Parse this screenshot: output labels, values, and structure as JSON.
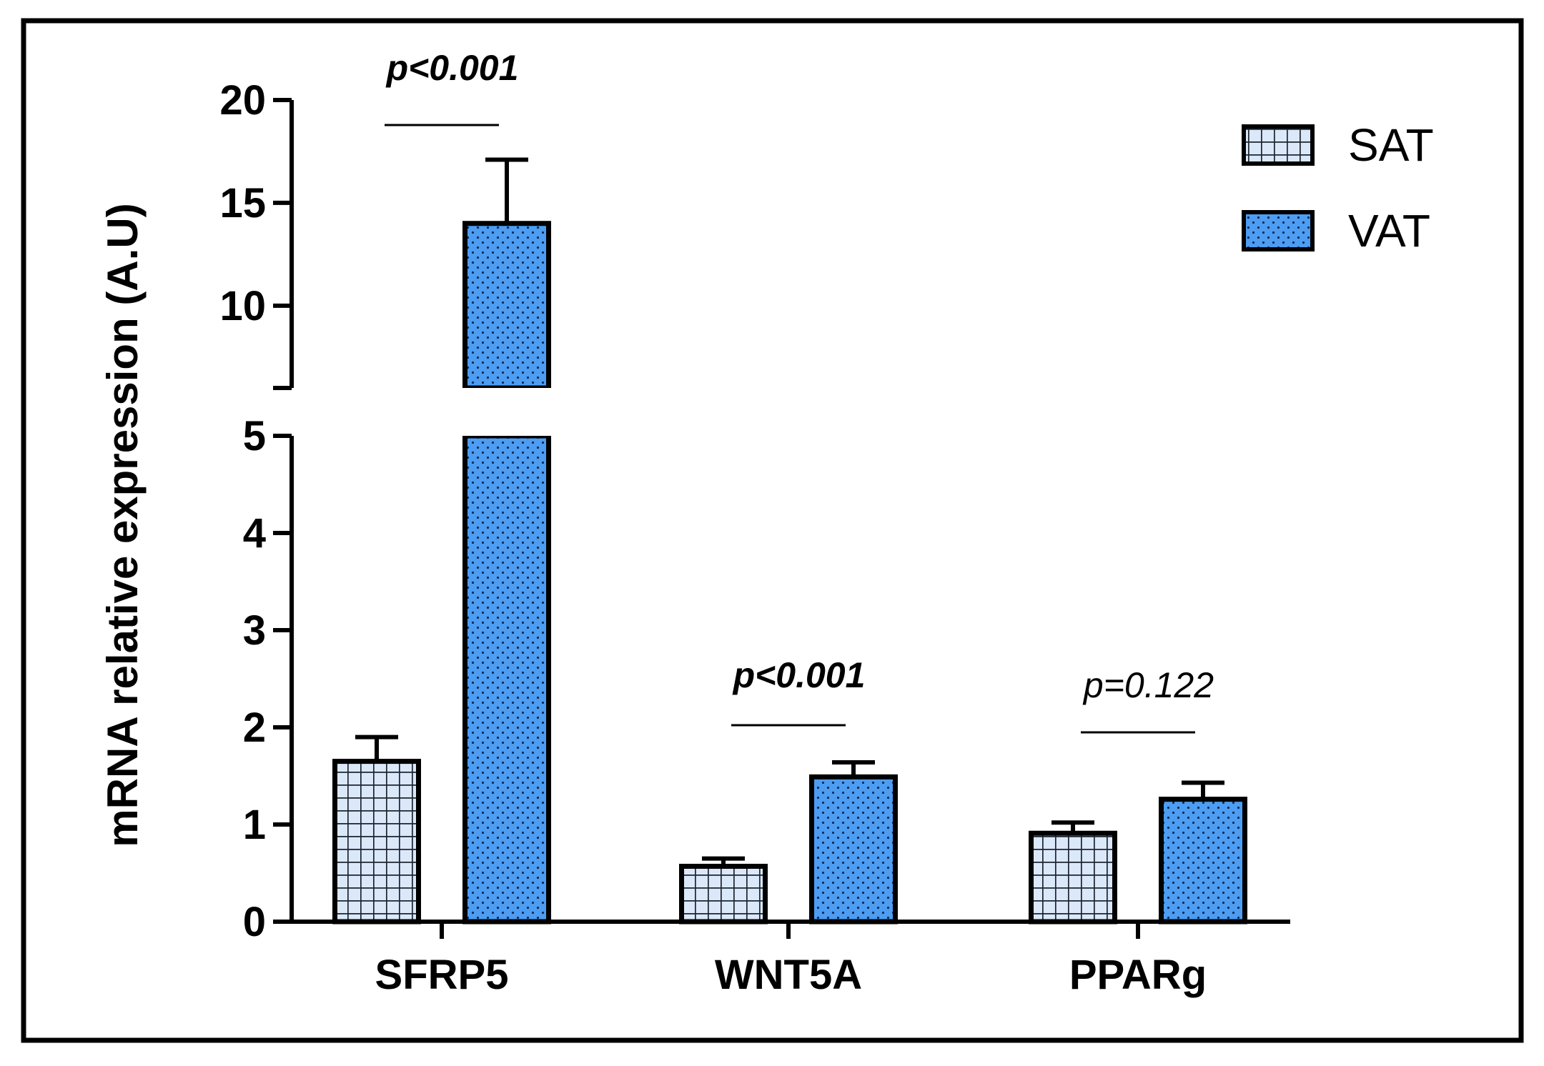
{
  "chart_data": {
    "type": "bar",
    "ylabel": "mRNA relative expression (A.U)",
    "categories": [
      "SFRP5",
      "WNT5A",
      "PPARg"
    ],
    "series": [
      {
        "name": "SAT",
        "values": [
          1.65,
          0.57,
          0.91
        ],
        "errors": [
          0.25,
          0.08,
          0.11
        ],
        "color": "#dbe8f9",
        "pattern": "grid"
      },
      {
        "name": "VAT",
        "values": [
          14.0,
          1.49,
          1.26
        ],
        "errors": [
          3.1,
          0.15,
          0.17
        ],
        "color": "#4d9df2",
        "pattern": "dots"
      }
    ],
    "axis_break": {
      "lower_range": [
        0,
        5
      ],
      "upper_range": [
        6,
        20
      ]
    },
    "yticks_lower": [
      "0",
      "1",
      "2",
      "3",
      "4",
      "5"
    ],
    "yticks_upper": [
      "10",
      "15",
      "20"
    ],
    "annotations": [
      {
        "category": "SFRP5",
        "text": "p<0.001",
        "bold": true
      },
      {
        "category": "WNT5A",
        "text": "p<0.001",
        "bold": true
      },
      {
        "category": "PPARg",
        "text": "p=0.122",
        "bold": false
      }
    ],
    "legend_position": "top-right"
  }
}
